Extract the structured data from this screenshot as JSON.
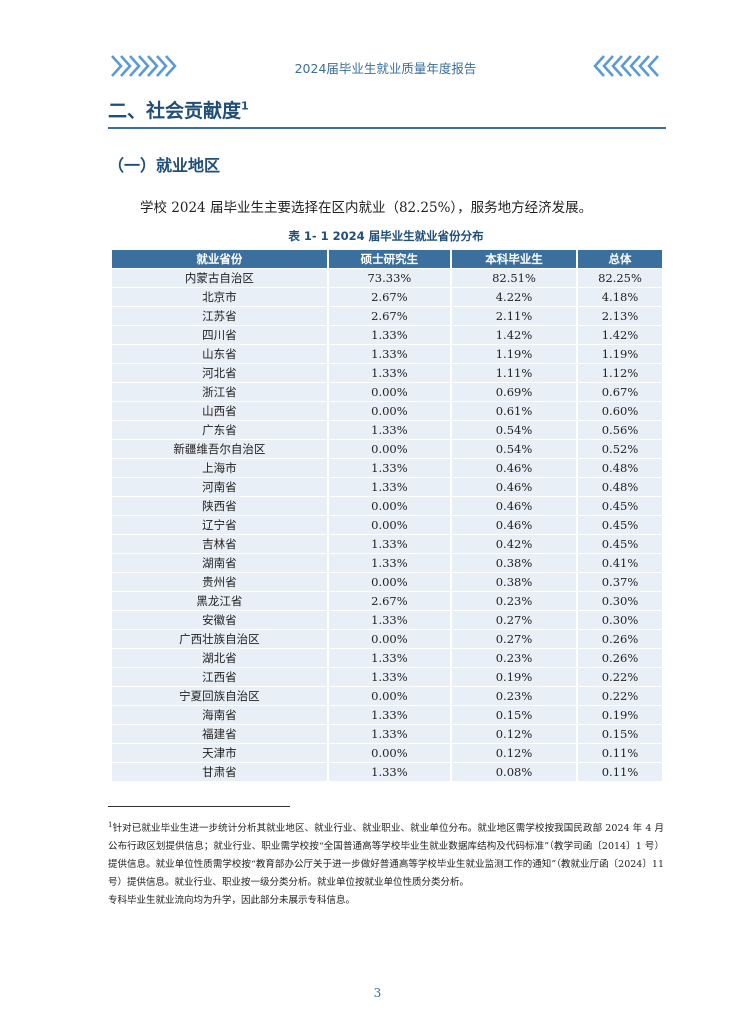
{
  "header": {
    "title": "2024届毕业生就业质量年度报告"
  },
  "section": {
    "title": "二、社会贡献度",
    "footnote_ref": "1"
  },
  "subsection": {
    "title": "（一）就业地区"
  },
  "intro": "学校 2024 届毕业生主要选择在区内就业（82.25%），服务地方经济发展。",
  "table": {
    "caption": "表 1- 1  2024 届毕业生就业省份分布",
    "headers": [
      "就业省份",
      "硕士研究生",
      "本科毕业生",
      "总体"
    ],
    "rows": [
      [
        "内蒙古自治区",
        "73.33%",
        "82.51%",
        "82.25%"
      ],
      [
        "北京市",
        "2.67%",
        "4.22%",
        "4.18%"
      ],
      [
        "江苏省",
        "2.67%",
        "2.11%",
        "2.13%"
      ],
      [
        "四川省",
        "1.33%",
        "1.42%",
        "1.42%"
      ],
      [
        "山东省",
        "1.33%",
        "1.19%",
        "1.19%"
      ],
      [
        "河北省",
        "1.33%",
        "1.11%",
        "1.12%"
      ],
      [
        "浙江省",
        "0.00%",
        "0.69%",
        "0.67%"
      ],
      [
        "山西省",
        "0.00%",
        "0.61%",
        "0.60%"
      ],
      [
        "广东省",
        "1.33%",
        "0.54%",
        "0.56%"
      ],
      [
        "新疆维吾尔自治区",
        "0.00%",
        "0.54%",
        "0.52%"
      ],
      [
        "上海市",
        "1.33%",
        "0.46%",
        "0.48%"
      ],
      [
        "河南省",
        "1.33%",
        "0.46%",
        "0.48%"
      ],
      [
        "陕西省",
        "0.00%",
        "0.46%",
        "0.45%"
      ],
      [
        "辽宁省",
        "0.00%",
        "0.46%",
        "0.45%"
      ],
      [
        "吉林省",
        "1.33%",
        "0.42%",
        "0.45%"
      ],
      [
        "湖南省",
        "1.33%",
        "0.38%",
        "0.41%"
      ],
      [
        "贵州省",
        "0.00%",
        "0.38%",
        "0.37%"
      ],
      [
        "黑龙江省",
        "2.67%",
        "0.23%",
        "0.30%"
      ],
      [
        "安徽省",
        "1.33%",
        "0.27%",
        "0.30%"
      ],
      [
        "广西壮族自治区",
        "0.00%",
        "0.27%",
        "0.26%"
      ],
      [
        "湖北省",
        "1.33%",
        "0.23%",
        "0.26%"
      ],
      [
        "江西省",
        "1.33%",
        "0.19%",
        "0.22%"
      ],
      [
        "宁夏回族自治区",
        "0.00%",
        "0.23%",
        "0.22%"
      ],
      [
        "海南省",
        "1.33%",
        "0.15%",
        "0.19%"
      ],
      [
        "福建省",
        "1.33%",
        "0.12%",
        "0.15%"
      ],
      [
        "天津市",
        "0.00%",
        "0.12%",
        "0.11%"
      ],
      [
        "甘肃省",
        "1.33%",
        "0.08%",
        "0.11%"
      ]
    ]
  },
  "footnote": {
    "marker": "1",
    "text": "针对已就业毕业生进一步统计分析其就业地区、就业行业、就业职业、就业单位分布。就业地区需学校按我国民政部 2024 年 4 月公布行政区划提供信息；就业行业、职业需学校按“全国普通高等学校毕业生就业数据库结构及代码标准”（教学司函〔2014〕1 号）提供信息。就业单位性质需学校按“教育部办公厅关于进一步做好普通高等学校毕业生就业监测工作的通知”（教就业厅函〔2024〕11 号）提供信息。就业行业、职业按一级分类分析。就业单位按就业单位性质分类分析。",
    "note": "专科毕业生就业流向均为升学，因此部分未展示专科信息。"
  },
  "page_number": "3",
  "colors": {
    "accent": "#3a6f9e",
    "heading": "#1f4e79",
    "row_bg": "#e9eff6"
  }
}
